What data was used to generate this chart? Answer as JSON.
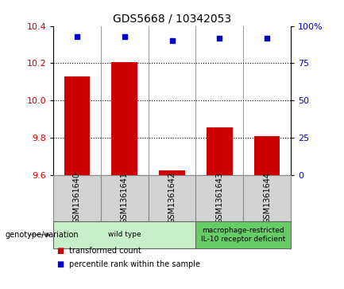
{
  "title": "GDS5668 / 10342053",
  "samples": [
    "GSM1361640",
    "GSM1361641",
    "GSM1361642",
    "GSM1361643",
    "GSM1361644"
  ],
  "bar_values": [
    10.13,
    10.205,
    9.625,
    9.855,
    9.81
  ],
  "percentile_values": [
    93,
    93,
    90,
    92,
    92
  ],
  "ylim_left": [
    9.6,
    10.4
  ],
  "ylim_right": [
    0,
    100
  ],
  "yticks_left": [
    9.6,
    9.8,
    10.0,
    10.2,
    10.4
  ],
  "yticks_right": [
    0,
    25,
    50,
    75,
    100
  ],
  "bar_color": "#cc0000",
  "point_color": "#0000cc",
  "bar_bottom": 9.6,
  "groups": [
    {
      "label": "wild type",
      "samples": [
        0,
        1,
        2
      ],
      "color": "#c8f0c8"
    },
    {
      "label": "macrophage-restricted\nIL-10 receptor deficient",
      "samples": [
        3,
        4
      ],
      "color": "#66cc66"
    }
  ],
  "legend_items": [
    {
      "label": "transformed count",
      "color": "#cc0000"
    },
    {
      "label": "percentile rank within the sample",
      "color": "#0000cc"
    }
  ],
  "xlabel_label": "genotype/variation",
  "sample_box_color": "#d3d3d3",
  "spine_color": "#888888",
  "fig_width": 4.33,
  "fig_height": 3.63,
  "dpi": 100
}
